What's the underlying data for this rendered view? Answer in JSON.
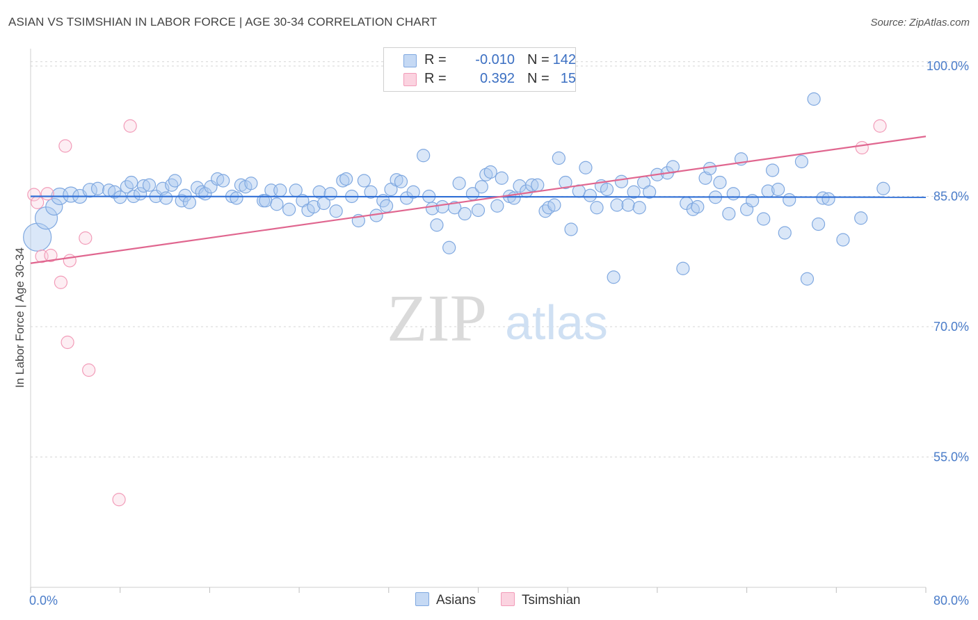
{
  "header": {
    "title": "ASIAN VS TSIMSHIAN IN LABOR FORCE | AGE 30-34 CORRELATION CHART",
    "source": "Source: ZipAtlas.com"
  },
  "legend": {
    "rows": [
      {
        "r_label": "R =",
        "r_value": "-0.010",
        "n_label": "N =",
        "n_value": "142"
      },
      {
        "r_label": "R =",
        "r_value": "0.392",
        "n_label": "N =",
        "n_value": "15"
      }
    ]
  },
  "bottom_legend": {
    "asians": "Asians",
    "tsimshian": "Tsimshian"
  },
  "watermark": {
    "zip": "ZIP",
    "atlas": "atlas"
  },
  "colors": {
    "asians": "#7fa8e0",
    "asians_line": "#2f6fd6",
    "tsimshian": "#f29bb8",
    "tsimshian_line": "#e0668f",
    "tick": "#4a7cc9"
  },
  "chart_data": {
    "type": "scatter",
    "title": "ASIAN VS TSIMSHIAN IN LABOR FORCE | AGE 30-34 CORRELATION CHART",
    "xlabel": "",
    "ylabel": "In Labor Force | Age 30-34",
    "xlim": [
      0,
      80
    ],
    "ylim": [
      40,
      102
    ],
    "x_tick_labels": [
      "0.0%",
      "80.0%"
    ],
    "y_ticks": [
      55,
      70,
      85,
      100
    ],
    "y_tick_labels": [
      "55.0%",
      "70.0%",
      "85.0%",
      "100.0%"
    ],
    "grid": true,
    "legend_position": "top-center",
    "series": [
      {
        "name": "Asians",
        "r": -0.01,
        "n": 142,
        "trend": {
          "x": [
            0,
            80
          ],
          "y": [
            85.0,
            84.9
          ]
        },
        "points": [
          [
            0.6,
            80.3,
            20
          ],
          [
            1.4,
            82.5,
            16
          ],
          [
            2.1,
            83.8,
            12
          ],
          [
            2.6,
            85.0,
            12
          ],
          [
            3.6,
            85.2,
            11
          ],
          [
            4.4,
            85.0,
            10
          ],
          [
            5.3,
            85.7,
            10
          ],
          [
            6.0,
            85.9,
            9
          ],
          [
            7.0,
            85.7,
            9
          ],
          [
            7.5,
            85.5,
            9
          ],
          [
            8.0,
            84.9,
            9
          ],
          [
            8.6,
            86.1,
            9
          ],
          [
            9.0,
            86.6,
            9
          ],
          [
            9.2,
            85.0,
            9
          ],
          [
            9.8,
            85.3,
            9
          ],
          [
            10.1,
            86.2,
            9
          ],
          [
            10.6,
            86.3,
            9
          ],
          [
            11.2,
            85.0,
            9
          ],
          [
            11.8,
            85.9,
            9
          ],
          [
            12.1,
            84.8,
            9
          ],
          [
            12.6,
            86.3,
            9
          ],
          [
            12.9,
            86.8,
            9
          ],
          [
            13.5,
            84.5,
            9
          ],
          [
            13.8,
            85.1,
            9
          ],
          [
            14.2,
            84.3,
            9
          ],
          [
            14.9,
            86.0,
            9
          ],
          [
            15.3,
            85.5,
            9
          ],
          [
            15.6,
            85.3,
            9
          ],
          [
            16.1,
            86.1,
            9
          ],
          [
            16.7,
            87.0,
            9
          ],
          [
            17.2,
            86.8,
            9
          ],
          [
            18.0,
            85.0,
            9
          ],
          [
            18.4,
            84.8,
            9
          ],
          [
            18.8,
            86.3,
            9
          ],
          [
            19.2,
            86.1,
            9
          ],
          [
            19.7,
            86.5,
            9
          ],
          [
            20.8,
            84.5,
            9
          ],
          [
            21.0,
            84.5,
            9
          ],
          [
            21.5,
            85.7,
            9
          ],
          [
            22.0,
            84.1,
            9
          ],
          [
            22.3,
            85.7,
            9
          ],
          [
            23.1,
            83.5,
            9
          ],
          [
            23.7,
            85.7,
            9
          ],
          [
            24.3,
            84.5,
            9
          ],
          [
            24.8,
            83.4,
            9
          ],
          [
            25.3,
            83.8,
            9
          ],
          [
            25.8,
            85.5,
            9
          ],
          [
            26.2,
            84.2,
            9
          ],
          [
            26.8,
            85.3,
            9
          ],
          [
            27.3,
            83.3,
            9
          ],
          [
            27.9,
            86.8,
            9
          ],
          [
            28.2,
            87.0,
            9
          ],
          [
            28.7,
            85.0,
            9
          ],
          [
            29.3,
            82.2,
            9
          ],
          [
            29.8,
            86.8,
            9
          ],
          [
            30.4,
            85.5,
            9
          ],
          [
            30.9,
            82.8,
            9
          ],
          [
            31.5,
            84.5,
            9
          ],
          [
            31.8,
            83.9,
            9
          ],
          [
            32.2,
            85.8,
            9
          ],
          [
            32.7,
            86.9,
            9
          ],
          [
            33.1,
            86.7,
            9
          ],
          [
            33.6,
            84.8,
            9
          ],
          [
            34.2,
            85.5,
            9
          ],
          [
            35.1,
            89.7,
            9
          ],
          [
            35.6,
            85.0,
            9
          ],
          [
            35.9,
            83.6,
            9
          ],
          [
            36.3,
            81.7,
            9
          ],
          [
            36.8,
            83.8,
            9
          ],
          [
            37.4,
            79.1,
            9
          ],
          [
            37.9,
            83.7,
            9
          ],
          [
            38.3,
            86.5,
            9
          ],
          [
            38.8,
            83.0,
            9
          ],
          [
            39.5,
            85.3,
            9
          ],
          [
            40.0,
            83.4,
            9
          ],
          [
            40.3,
            86.1,
            9
          ],
          [
            40.7,
            87.5,
            9
          ],
          [
            41.1,
            87.8,
            9
          ],
          [
            41.7,
            83.9,
            9
          ],
          [
            42.1,
            87.1,
            9
          ],
          [
            42.8,
            85.0,
            9
          ],
          [
            43.2,
            84.8,
            9
          ],
          [
            43.7,
            86.2,
            9
          ],
          [
            44.3,
            85.6,
            9
          ],
          [
            44.8,
            86.3,
            9
          ],
          [
            45.3,
            86.3,
            9
          ],
          [
            46.0,
            83.3,
            9
          ],
          [
            46.3,
            83.7,
            9
          ],
          [
            46.8,
            84.0,
            9
          ],
          [
            47.2,
            89.4,
            9
          ],
          [
            47.8,
            86.6,
            9
          ],
          [
            48.3,
            81.2,
            9
          ],
          [
            49.0,
            85.6,
            9
          ],
          [
            49.6,
            88.3,
            9
          ],
          [
            50.0,
            85.1,
            9
          ],
          [
            50.6,
            83.7,
            9
          ],
          [
            51.0,
            86.2,
            9
          ],
          [
            51.5,
            85.8,
            9
          ],
          [
            52.1,
            75.7,
            9
          ],
          [
            52.4,
            84.0,
            9
          ],
          [
            52.8,
            86.7,
            9
          ],
          [
            53.4,
            84.0,
            9
          ],
          [
            53.9,
            85.5,
            9
          ],
          [
            54.4,
            83.7,
            9
          ],
          [
            54.8,
            86.6,
            9
          ],
          [
            55.3,
            85.5,
            9
          ],
          [
            56.0,
            87.5,
            9
          ],
          [
            56.9,
            87.7,
            9
          ],
          [
            57.4,
            88.4,
            9
          ],
          [
            58.3,
            76.7,
            9
          ],
          [
            58.6,
            84.2,
            9
          ],
          [
            59.2,
            83.5,
            9
          ],
          [
            59.6,
            83.8,
            9
          ],
          [
            60.3,
            87.1,
            9
          ],
          [
            60.7,
            88.2,
            9
          ],
          [
            61.2,
            84.9,
            9
          ],
          [
            61.6,
            86.6,
            9
          ],
          [
            62.4,
            83.0,
            9
          ],
          [
            62.8,
            85.3,
            9
          ],
          [
            63.5,
            89.3,
            9
          ],
          [
            64.0,
            83.5,
            9
          ],
          [
            64.5,
            84.5,
            9
          ],
          [
            65.5,
            82.4,
            9
          ],
          [
            65.9,
            85.6,
            9
          ],
          [
            66.3,
            88.0,
            9
          ],
          [
            66.8,
            85.8,
            9
          ],
          [
            67.4,
            80.8,
            9
          ],
          [
            67.8,
            84.6,
            9
          ],
          [
            68.9,
            89.0,
            9
          ],
          [
            69.4,
            75.5,
            9
          ],
          [
            70.0,
            96.2,
            9
          ],
          [
            70.4,
            81.8,
            9
          ],
          [
            70.8,
            84.8,
            9
          ],
          [
            71.3,
            84.7,
            9
          ],
          [
            72.6,
            80.0,
            9
          ],
          [
            74.2,
            82.5,
            9
          ],
          [
            76.2,
            85.9,
            9
          ]
        ]
      },
      {
        "name": "Tsimshian",
        "r": 0.392,
        "n": 15,
        "trend": {
          "x": [
            0,
            80
          ],
          "y": [
            77.3,
            91.9
          ]
        },
        "points": [
          [
            0.3,
            85.2,
            9
          ],
          [
            0.6,
            84.3,
            9
          ],
          [
            1.0,
            78.1,
            9
          ],
          [
            1.5,
            85.3,
            9
          ],
          [
            1.8,
            78.2,
            9
          ],
          [
            2.7,
            75.1,
            9
          ],
          [
            3.1,
            90.8,
            9
          ],
          [
            3.3,
            68.2,
            9
          ],
          [
            3.5,
            77.6,
            9
          ],
          [
            4.9,
            80.2,
            9
          ],
          [
            5.2,
            65.0,
            9
          ],
          [
            7.9,
            50.1,
            9
          ],
          [
            8.9,
            93.1,
            9
          ],
          [
            74.3,
            90.6,
            9
          ],
          [
            75.9,
            93.1,
            9
          ]
        ]
      }
    ]
  }
}
